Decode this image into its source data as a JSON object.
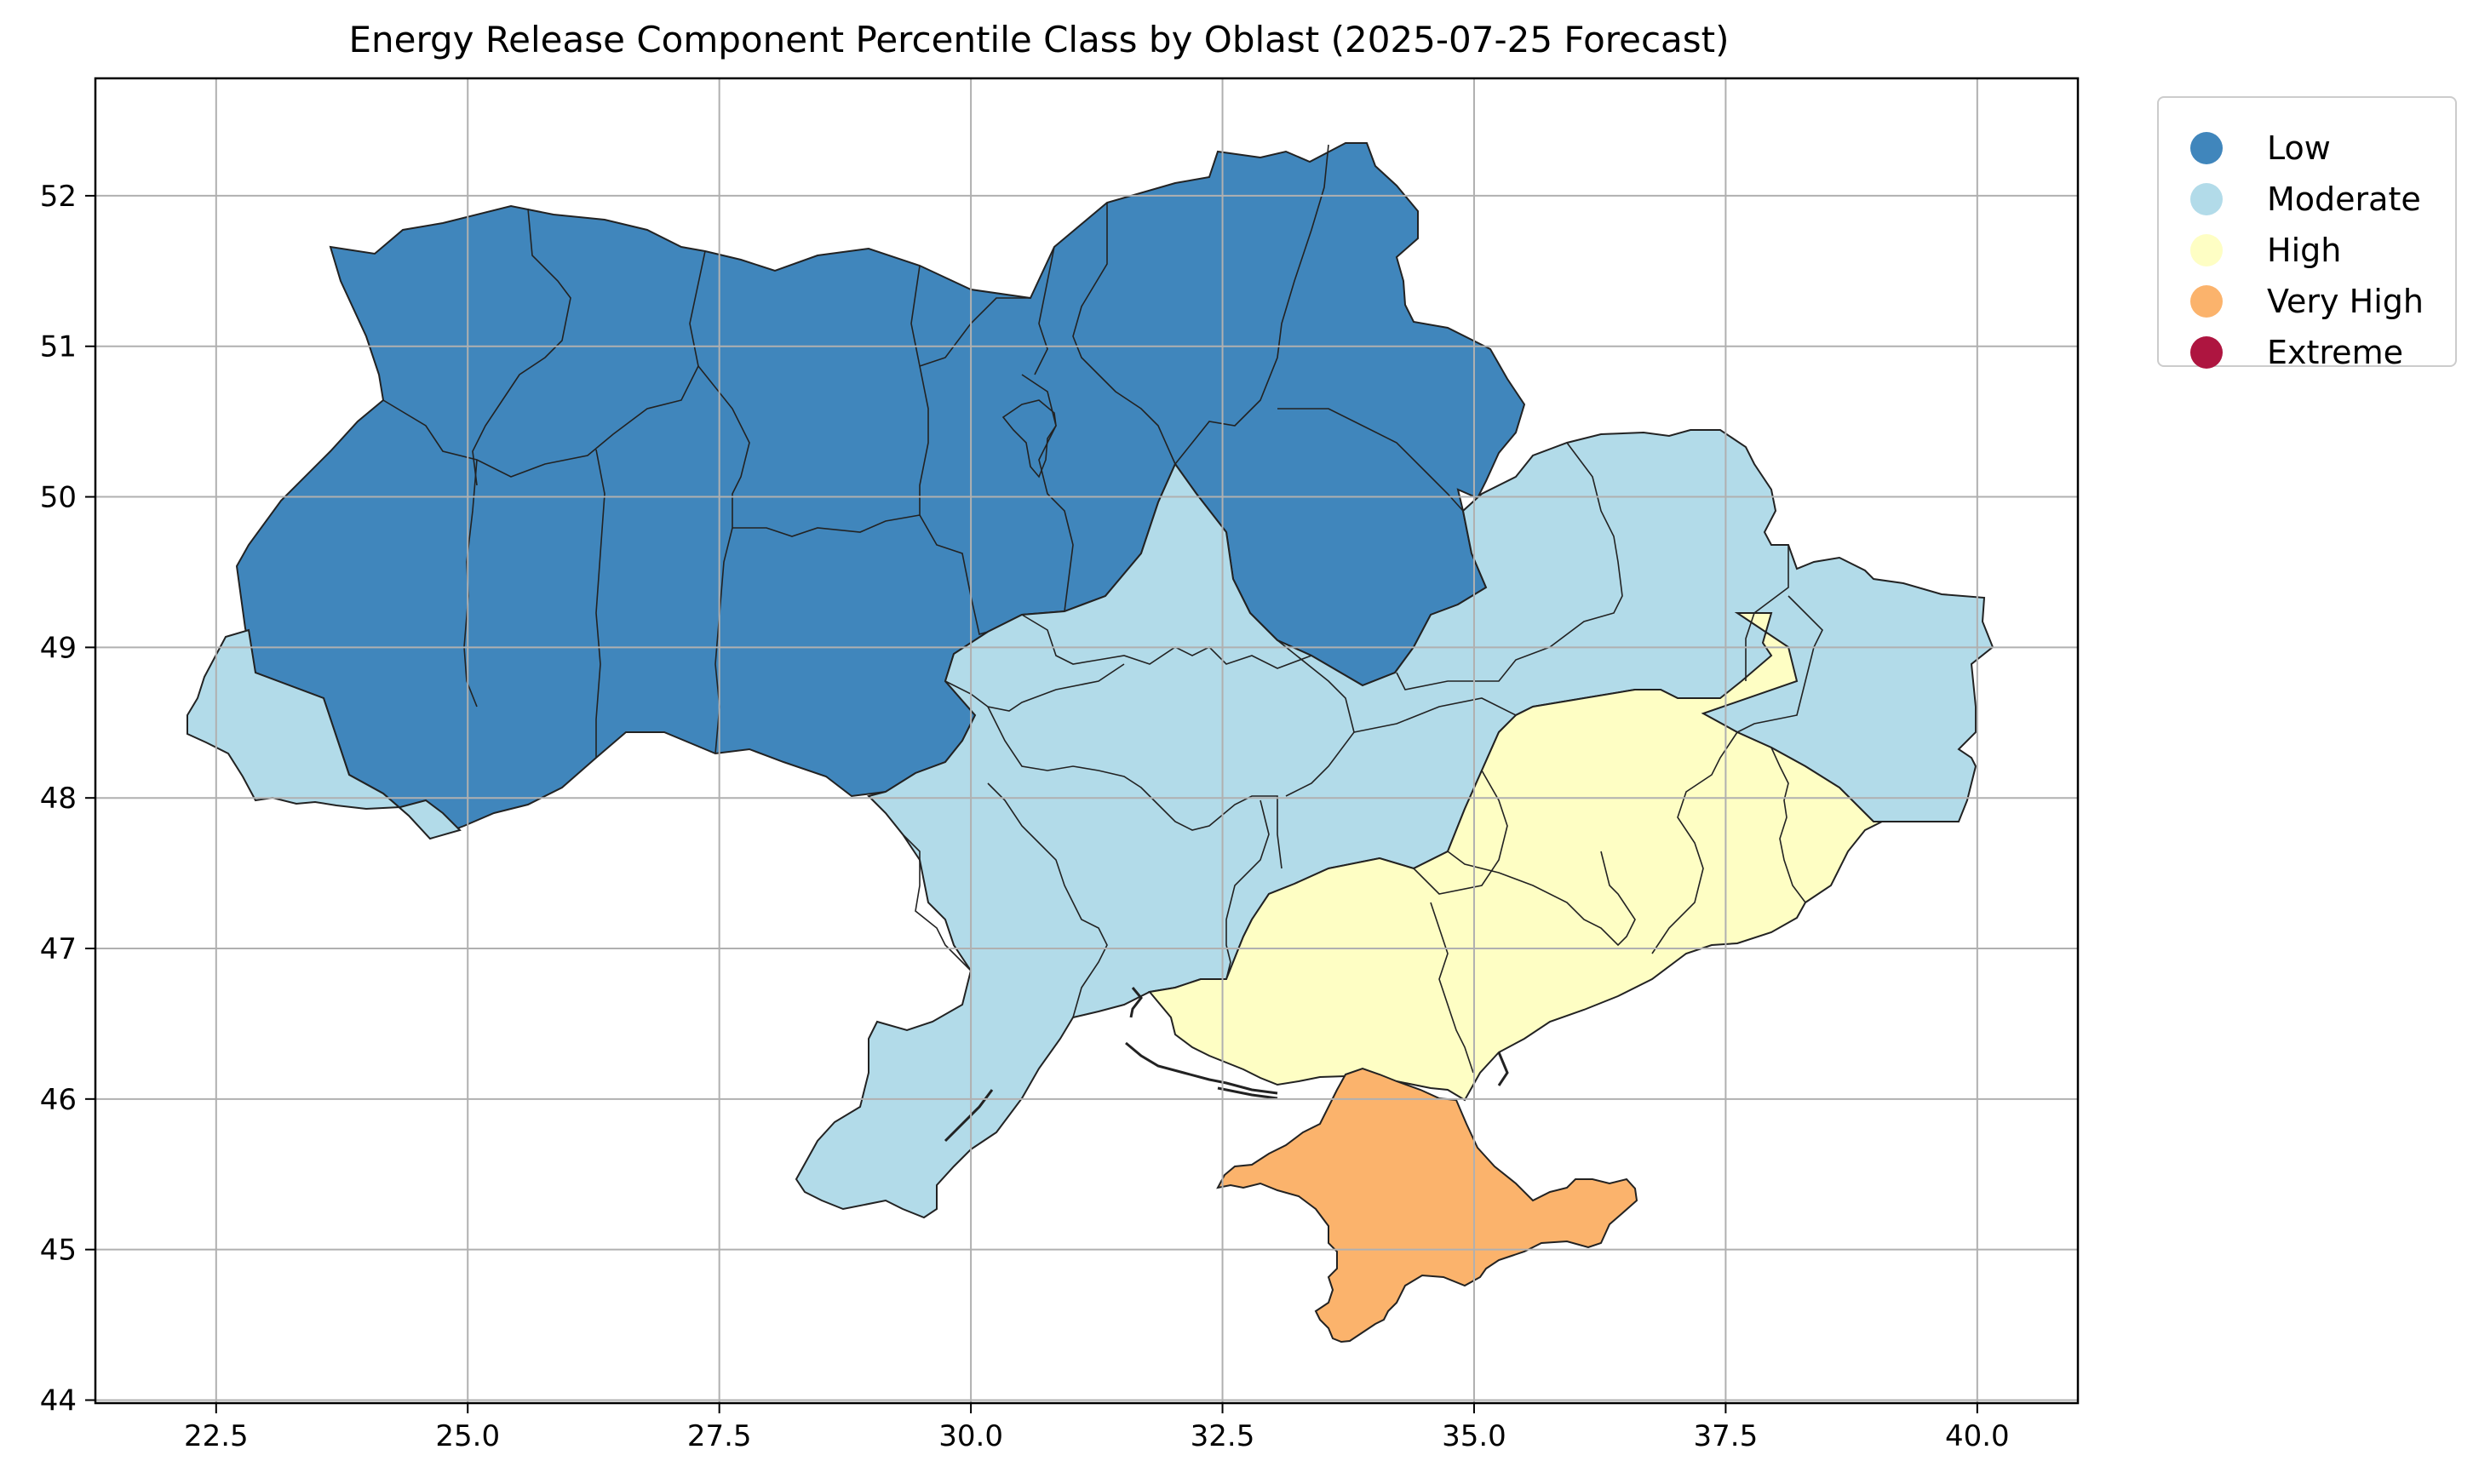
{
  "title": "Energy Release Component Percentile Class by Oblast (2025-07-25 Forecast)",
  "x_ticks": [
    "22.5",
    "25.0",
    "27.5",
    "30.0",
    "32.5",
    "35.0",
    "37.5",
    "40.0"
  ],
  "y_ticks": [
    "44",
    "45",
    "46",
    "47",
    "48",
    "49",
    "50",
    "51",
    "52"
  ],
  "legend": [
    {
      "label": "Low",
      "color": "#4086bc"
    },
    {
      "label": "Moderate",
      "color": "#b2dbe9"
    },
    {
      "label": "High",
      "color": "#fefec4"
    },
    {
      "label": "Very High",
      "color": "#fbb36c"
    },
    {
      "label": "Extreme",
      "color": "#ae1540"
    }
  ],
  "chart_data": {
    "type": "choropleth",
    "x_range": [
      21.3,
      41.0
    ],
    "y_range": [
      43.98,
      52.78
    ],
    "grid": true,
    "legend_placement": "outside-top-right",
    "regions": [
      {
        "class": "Low",
        "lon": 24.3,
        "lat": 50.8
      },
      {
        "class": "Low",
        "lon": 26.2,
        "lat": 50.8
      },
      {
        "class": "Low",
        "lon": 24.0,
        "lat": 49.8
      },
      {
        "class": "Low",
        "lon": 25.6,
        "lat": 49.5
      },
      {
        "class": "Low",
        "lon": 26.9,
        "lat": 49.5
      },
      {
        "class": "Low",
        "lon": 24.6,
        "lat": 48.8
      },
      {
        "class": "Low",
        "lon": 25.9,
        "lat": 48.3
      },
      {
        "class": "Low",
        "lon": 28.5,
        "lat": 50.6
      },
      {
        "class": "Low",
        "lon": 28.6,
        "lat": 49.0
      },
      {
        "class": "Low",
        "lon": 30.5,
        "lat": 50.2
      },
      {
        "class": "Low",
        "lon": 32.0,
        "lat": 51.3
      },
      {
        "class": "Low",
        "lon": 34.0,
        "lat": 51.0
      },
      {
        "class": "Low",
        "lon": 34.0,
        "lat": 49.6
      },
      {
        "class": "Moderate",
        "lon": 22.8,
        "lat": 48.4
      },
      {
        "class": "Moderate",
        "lon": 31.5,
        "lat": 48.9
      },
      {
        "class": "Moderate",
        "lon": 31.8,
        "lat": 48.1
      },
      {
        "class": "Moderate",
        "lon": 30.4,
        "lat": 47.0
      },
      {
        "class": "Moderate",
        "lon": 32.5,
        "lat": 47.5
      },
      {
        "class": "Moderate",
        "lon": 35.0,
        "lat": 48.5
      },
      {
        "class": "Moderate",
        "lon": 36.5,
        "lat": 49.7
      },
      {
        "class": "Moderate",
        "lon": 39.0,
        "lat": 48.9
      },
      {
        "class": "High",
        "lon": 37.7,
        "lat": 48.0
      },
      {
        "class": "High",
        "lon": 35.7,
        "lat": 47.3
      },
      {
        "class": "High",
        "lon": 33.4,
        "lat": 46.7
      },
      {
        "class": "Very High",
        "lon": 34.2,
        "lat": 45.3
      }
    ]
  }
}
